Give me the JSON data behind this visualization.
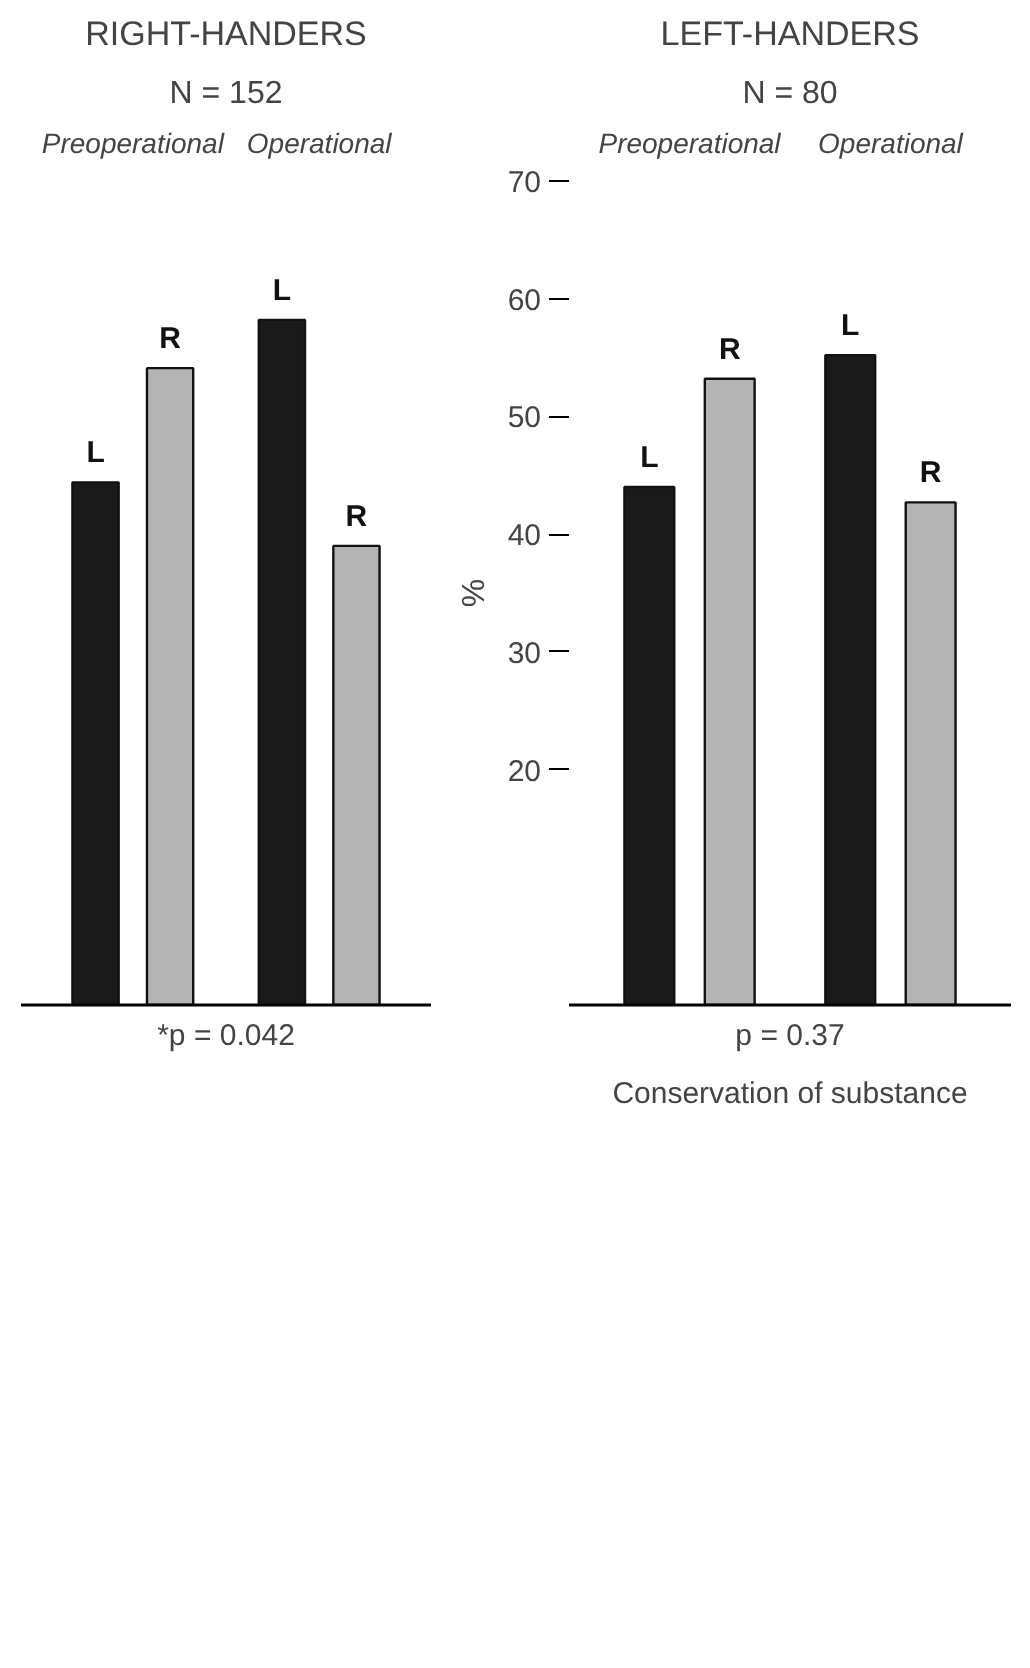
{
  "chart_data": [
    {
      "type": "bar",
      "title": "RIGHT-HANDERS",
      "subtitle": "N = 152",
      "categories": [
        "Preoperational",
        "Operational"
      ],
      "series": [
        {
          "name": "L",
          "color": "#1a1a1a",
          "values": [
            44.4,
            58.2
          ]
        },
        {
          "name": "R",
          "color": "#b4b4b4",
          "values": [
            54.1,
            39.0
          ]
        }
      ],
      "ylim": [
        0,
        70
      ],
      "yticks": [
        20,
        30,
        40,
        50,
        60,
        70
      ],
      "tick_labels": "x",
      "grid": false,
      "legend": false,
      "annotations": [
        "*p = 0.042"
      ]
    },
    {
      "type": "bar",
      "title": "LEFT-HANDERS",
      "subtitle": "N = 80",
      "categories": [
        "Preoperational",
        "Operational"
      ],
      "series": [
        {
          "name": "L",
          "color": "#1a1a1a",
          "values": [
            44.0,
            55.2
          ]
        },
        {
          "name": "R",
          "color": "#b4b4b4",
          "values": [
            53.2,
            42.7
          ]
        }
      ],
      "ylim": [
        0,
        70
      ],
      "yticks": [
        20,
        30,
        40,
        50,
        60,
        70
      ],
      "ylabel": "%",
      "grid": false,
      "legend": false,
      "annotations": [
        "p = 0.37",
        "Conservation of substance"
      ]
    }
  ]
}
